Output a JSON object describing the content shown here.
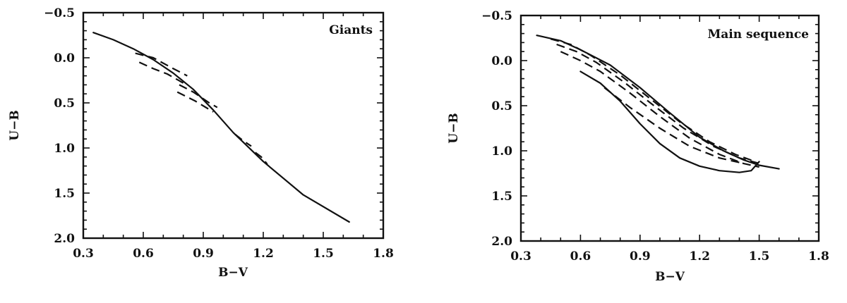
{
  "chart_data": [
    {
      "type": "line",
      "panel_label": "Giants",
      "legend_placement": "top-right",
      "xlabel": "B−V",
      "ylabel": "U−B",
      "xlim": [
        0.3,
        1.8
      ],
      "ylim": [
        -0.5,
        2.0
      ],
      "y_inverted": true,
      "grid": false,
      "xticks": [
        0.3,
        0.6,
        0.9,
        1.2,
        1.5,
        1.8
      ],
      "xtick_labels": [
        "0.3",
        "0.6",
        "0.9",
        "1.2",
        "1.5",
        "1.8"
      ],
      "yticks": [
        -0.5,
        0.0,
        0.5,
        1.0,
        1.5,
        2.0
      ],
      "ytick_labels": [
        "−0.5",
        "0.0",
        "0.5",
        "1.0",
        "1.5",
        "2.0"
      ],
      "series": [
        {
          "style": "solid",
          "x": [
            0.35,
            0.45,
            0.55,
            0.65,
            0.75,
            0.85,
            0.95,
            1.05,
            1.2,
            1.4,
            1.63
          ],
          "y": [
            -0.28,
            -0.2,
            -0.1,
            0.02,
            0.17,
            0.35,
            0.58,
            0.83,
            1.15,
            1.52,
            1.82
          ]
        },
        {
          "style": "dashed",
          "x": [
            0.56,
            0.65,
            0.75,
            0.82
          ],
          "y": [
            -0.05,
            0.0,
            0.12,
            0.2
          ]
        },
        {
          "style": "dashed",
          "x": [
            0.58,
            0.65,
            0.72,
            0.8
          ],
          "y": [
            0.05,
            0.12,
            0.18,
            0.28
          ]
        },
        {
          "style": "dashed",
          "x": [
            0.78,
            0.85,
            0.93,
            0.97
          ],
          "y": [
            0.3,
            0.38,
            0.5,
            0.55
          ]
        },
        {
          "style": "dashed",
          "x": [
            0.77,
            0.86,
            0.95
          ],
          "y": [
            0.38,
            0.48,
            0.6
          ]
        },
        {
          "style": "dashed",
          "x": [
            1.06,
            1.1,
            1.14
          ],
          "y": [
            0.85,
            0.92,
            0.98
          ]
        },
        {
          "style": "dashed",
          "x": [
            1.16,
            1.19,
            1.22
          ],
          "y": [
            1.05,
            1.1,
            1.18
          ]
        }
      ]
    },
    {
      "type": "line",
      "panel_label": "Main sequence",
      "legend_placement": "top-right",
      "xlabel": "B−V",
      "ylabel": "U−B",
      "xlim": [
        0.3,
        1.8
      ],
      "ylim": [
        -0.5,
        2.0
      ],
      "y_inverted": true,
      "grid": false,
      "xticks": [
        0.3,
        0.6,
        0.9,
        1.2,
        1.5,
        1.8
      ],
      "xtick_labels": [
        "0.3",
        "0.6",
        "0.9",
        "1.2",
        "1.5",
        "1.8"
      ],
      "yticks": [
        -0.5,
        0.0,
        0.5,
        1.0,
        1.5,
        2.0
      ],
      "ytick_labels": [
        "−0.5",
        "0.0",
        "0.5",
        "1.0",
        "1.5",
        "2.0"
      ],
      "series": [
        {
          "style": "solid",
          "x": [
            0.38,
            0.5,
            0.6,
            0.75,
            0.9,
            1.05,
            1.2,
            1.32,
            1.42,
            1.5,
            1.6
          ],
          "y": [
            -0.28,
            -0.22,
            -0.12,
            0.05,
            0.3,
            0.58,
            0.85,
            1.0,
            1.1,
            1.16,
            1.2
          ]
        },
        {
          "style": "solid",
          "x": [
            0.6,
            0.7,
            0.8,
            0.9,
            1.0,
            1.1,
            1.2,
            1.3,
            1.4,
            1.46,
            1.5
          ],
          "y": [
            0.12,
            0.25,
            0.45,
            0.7,
            0.92,
            1.08,
            1.17,
            1.22,
            1.24,
            1.22,
            1.12
          ]
        },
        {
          "style": "dashed",
          "x": [
            0.45,
            0.55,
            0.65,
            0.8,
            0.95,
            1.1,
            1.25,
            1.38,
            1.48
          ],
          "y": [
            -0.24,
            -0.18,
            -0.06,
            0.16,
            0.42,
            0.68,
            0.9,
            1.04,
            1.12
          ]
        },
        {
          "style": "dashed",
          "x": [
            0.48,
            0.58,
            0.68,
            0.82,
            0.97,
            1.12,
            1.27,
            1.4,
            1.5
          ],
          "y": [
            -0.18,
            -0.1,
            0.02,
            0.24,
            0.5,
            0.75,
            0.95,
            1.08,
            1.14
          ]
        },
        {
          "style": "dashed",
          "x": [
            0.5,
            0.6,
            0.7,
            0.85,
            1.0,
            1.15,
            1.3,
            1.42,
            1.5
          ],
          "y": [
            -0.1,
            0.0,
            0.12,
            0.36,
            0.62,
            0.86,
            1.04,
            1.14,
            1.18
          ]
        },
        {
          "style": "dashed",
          "x": [
            0.72,
            0.85,
            1.0,
            1.15,
            1.3,
            1.42
          ],
          "y": [
            0.3,
            0.52,
            0.75,
            0.95,
            1.08,
            1.14
          ]
        }
      ]
    }
  ]
}
